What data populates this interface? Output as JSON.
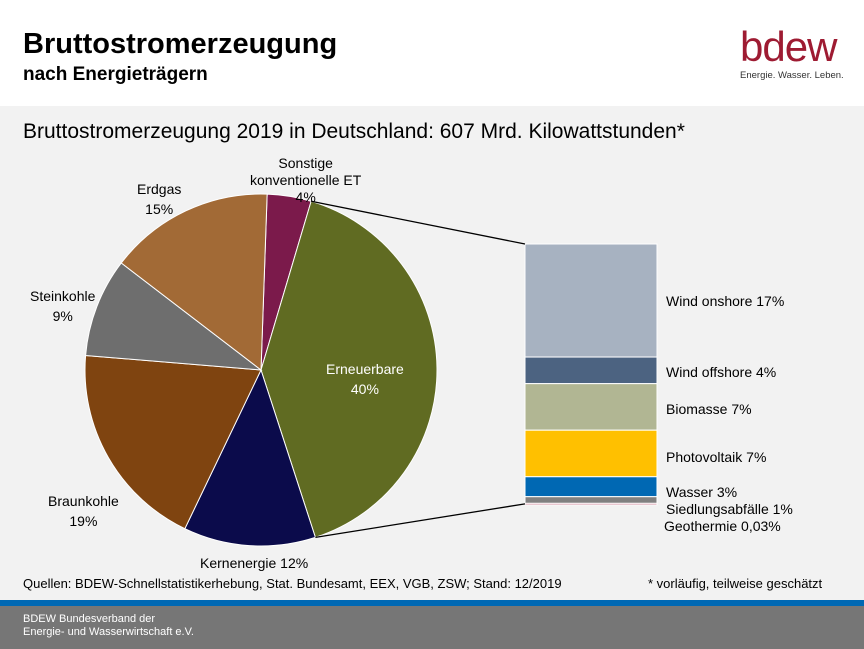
{
  "header": {
    "title": "Bruttostromerzeugung",
    "subtitle": "nach Energieträgern",
    "logo_text": "bdew",
    "logo_tagline": "Energie. Wasser. Leben."
  },
  "chart_data": {
    "type": "pie",
    "title": "Bruttostromerzeugung 2019 in Deutschland: 607 Mrd. Kilowattstunden*",
    "slices": [
      {
        "name": "Sonstige konventionelle ET",
        "label": [
          "Sonstige",
          "konventionelle  ET",
          "4%"
        ],
        "value": 4,
        "color": "#7b1a4b"
      },
      {
        "name": "Erneuerbare",
        "label": [
          "Erneuerbare",
          "40%"
        ],
        "value": 40,
        "color": "#606b22"
      },
      {
        "name": "Kernenergie",
        "label": [
          "Kernenergie  12%"
        ],
        "value": 12,
        "color": "#0b0b4b"
      },
      {
        "name": "Braunkohle",
        "label": [
          "Braunkohle",
          "19%"
        ],
        "value": 19,
        "color": "#7f4410"
      },
      {
        "name": "Steinkohle",
        "label": [
          "Steinkohle",
          "9%"
        ],
        "value": 9,
        "color": "#6e6e6e"
      },
      {
        "name": "Erdgas",
        "label": [
          "Erdgas",
          "15%"
        ],
        "value": 15,
        "color": "#a26a36"
      }
    ],
    "breakdown": {
      "of": "Erneuerbare",
      "segments": [
        {
          "name": "Wind onshore",
          "label": "Wind onshore  17%",
          "value": 17,
          "color": "#a7b2c1"
        },
        {
          "name": "Wind offshore",
          "label": "Wind offshore 4%",
          "value": 4,
          "color": "#4c6381"
        },
        {
          "name": "Biomasse",
          "label": "Biomasse  7%",
          "value": 7,
          "color": "#b1b693"
        },
        {
          "name": "Photovoltaik",
          "label": "Photovoltaik  7%",
          "value": 7,
          "color": "#ffc000"
        },
        {
          "name": "Wasser",
          "label": "Wasser 3%",
          "value": 3,
          "color": "#0068b3"
        },
        {
          "name": "Siedlungsabfälle",
          "label": "Siedlungsabfälle  1%",
          "value": 1,
          "color": "#808080"
        },
        {
          "name": "Geothermie",
          "label": "Geothermie  0,03%",
          "value": 0.03,
          "color": "#c0607a"
        }
      ]
    }
  },
  "sources": "Quellen: BDEW-Schnellstatistikerhebung, Stat. Bundesamt, EEX, VGB, ZSW; Stand: 12/2019",
  "note": "* vorläufig,  teilweise geschätzt",
  "footer": {
    "line1": "BDEW Bundesverband der",
    "line2": "Energie- und Wasserwirtschaft e.V."
  }
}
